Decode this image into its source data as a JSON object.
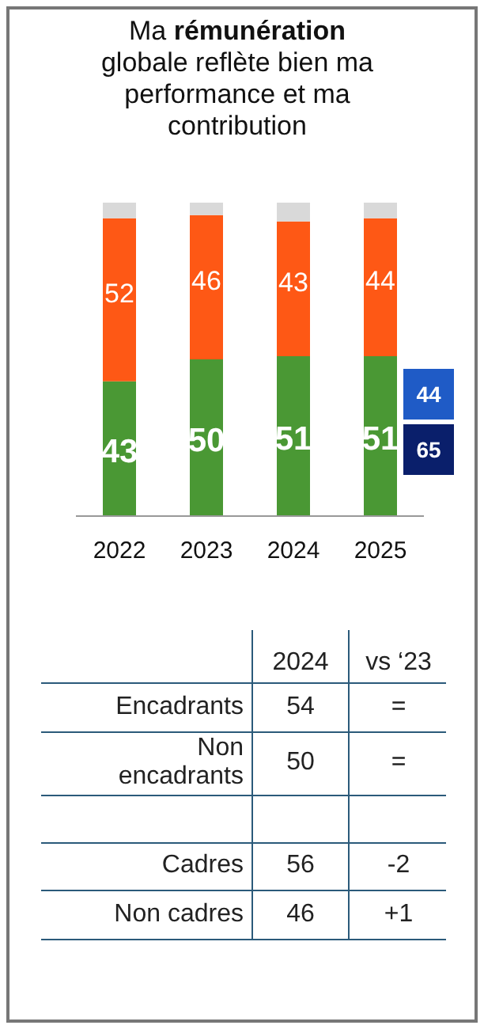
{
  "chart_data": {
    "type": "bar",
    "title": "Ma rémunération globale reflète bien ma performance et ma contribution",
    "categories": [
      "2022",
      "2023",
      "2024",
      "2025"
    ],
    "stacked": true,
    "ylim": [
      0,
      100
    ],
    "legend": false,
    "series": [
      {
        "color": "#4a9834",
        "values": [
          43,
          50,
          51,
          51
        ],
        "value_labels": [
          "43",
          "50",
          "51",
          "51"
        ]
      },
      {
        "color": "#fe5815",
        "values": [
          52,
          46,
          43,
          44
        ],
        "value_labels": [
          "52",
          "46",
          "43",
          "44"
        ]
      },
      {
        "color": "#d9d9d9",
        "values": [
          5,
          4,
          6,
          5
        ],
        "value_labels": [
          null,
          null,
          null,
          null
        ]
      }
    ],
    "annotations": [
      "44",
      "65",
      "2024",
      "vs ‘23",
      "Encadrants",
      "54",
      "=",
      "Non encadrants",
      "50",
      "=",
      "Cadres",
      "56",
      "-2",
      "Non cadres",
      "46",
      "+1"
    ]
  }
}
